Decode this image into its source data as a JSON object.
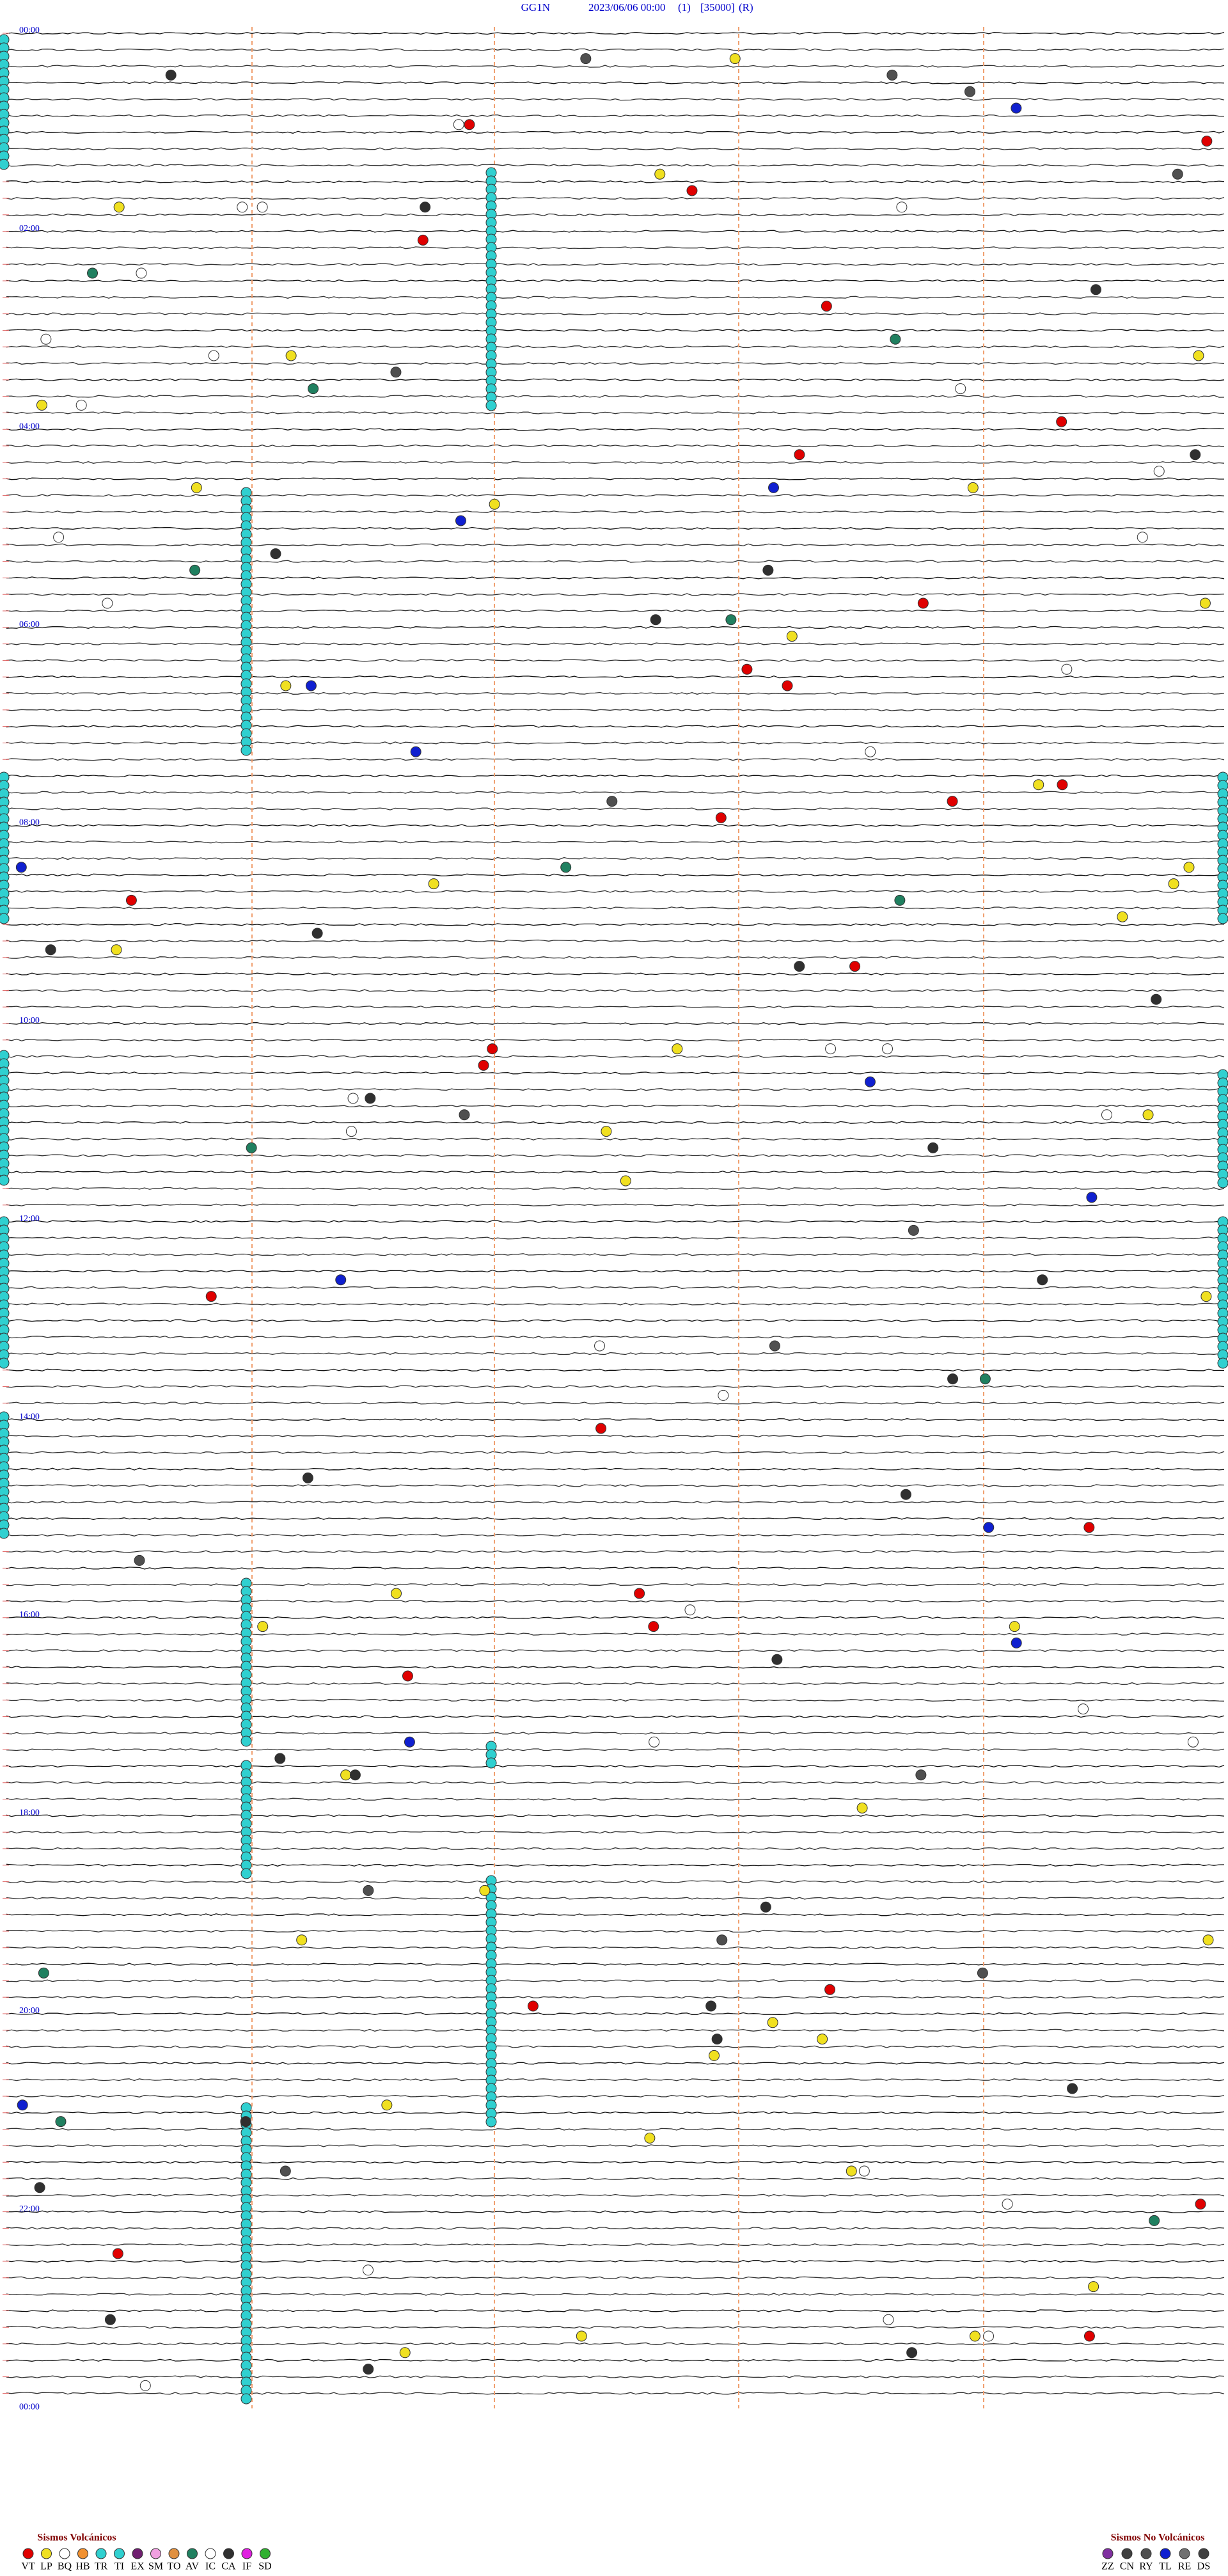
{
  "header": {
    "station": "GG1N",
    "datetime": "2023/06/06 00:00",
    "channel": "(1)",
    "scale": "[35000]",
    "mode": "(R)"
  },
  "time_labels": [
    "00:00",
    "02:00",
    "04:00",
    "06:00",
    "08:00",
    "10:00",
    "12:00",
    "14:00",
    "16:00",
    "18:00",
    "20:00",
    "22:00",
    "00:00"
  ],
  "legend": {
    "volcanic": {
      "title": "Sismos Volcánicos",
      "items": [
        {
          "code": "VT",
          "color": "#e00000"
        },
        {
          "code": "LP",
          "color": "#f0e020"
        },
        {
          "code": "BQ",
          "color": "#ffffff"
        },
        {
          "code": "HB",
          "color": "#f09030"
        },
        {
          "code": "TR",
          "color": "#30d0d0"
        },
        {
          "code": "TI",
          "color": "#30d0d0"
        },
        {
          "code": "EX",
          "color": "#702070"
        },
        {
          "code": "SM",
          "color": "#f0a0e0"
        },
        {
          "code": "TO",
          "color": "#e09040"
        },
        {
          "code": "AV",
          "color": "#208060"
        },
        {
          "code": "IC",
          "color": "#ffffff"
        },
        {
          "code": "CA",
          "color": "#303030"
        },
        {
          "code": "IF",
          "color": "#e020e0"
        },
        {
          "code": "SD",
          "color": "#30b030"
        }
      ]
    },
    "non_volcanic": {
      "title": "Sismos No Volcánicos",
      "items": [
        {
          "code": "ZZ",
          "color": "#8030a0"
        },
        {
          "code": "CN",
          "color": "#404040"
        },
        {
          "code": "RY",
          "color": "#505050"
        },
        {
          "code": "TL",
          "color": "#1020d0"
        },
        {
          "code": "RE",
          "color": "#707070"
        },
        {
          "code": "DS",
          "color": "#404040"
        }
      ]
    }
  }
}
